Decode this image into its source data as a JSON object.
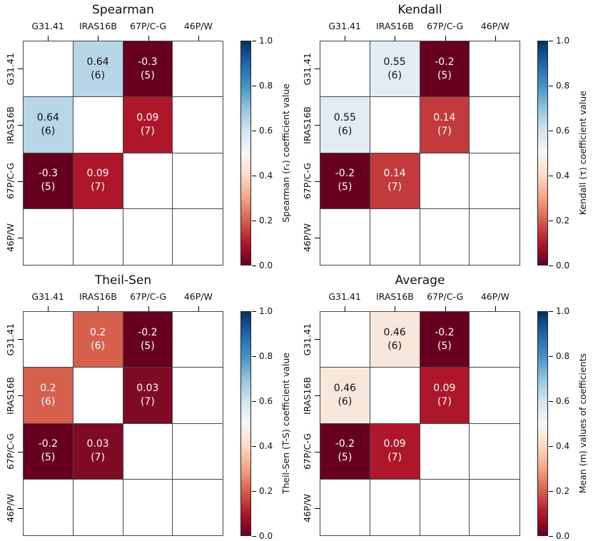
{
  "figure": {
    "row_labels": [
      "G31.41",
      "IRAS16B",
      "67P/C-G",
      "46P/W"
    ],
    "col_labels": [
      "G31.41",
      "IRAS16B",
      "67P/C-G",
      "46P/W"
    ],
    "colorbar_ticks": [
      "1.0",
      "0.8",
      "0.6",
      "0.4",
      "0.2",
      "0.0"
    ],
    "colorbar_range": [
      0.0,
      1.0
    ],
    "colormap": {
      "name": "RdBu",
      "stops": [
        "#67001f 0%",
        "#b2182b 10%",
        "#d6604d 20%",
        "#f4a582 30%",
        "#fddbc7 40%",
        "#f7f7f7 50%",
        "#d1e5f0 60%",
        "#92c5de 70%",
        "#4393c3 80%",
        "#2166ac 90%",
        "#053061 100%"
      ]
    },
    "text_color_dark": "#111111",
    "text_color_light": "#ffffff"
  },
  "chart_data": [
    {
      "type": "heatmap",
      "title": "Spearman",
      "colorbar_label": "Spearman (rₛ) coefficient value",
      "rows": [
        "G31.41",
        "IRAS16B",
        "67P/C-G",
        "46P/W"
      ],
      "columns": [
        "G31.41",
        "IRAS16B",
        "67P/C-G",
        "46P/W"
      ],
      "cells": [
        [
          null,
          {
            "value": 0.64,
            "n": 6,
            "label": "0.64",
            "count": "(6)",
            "bg": "#b7d6e8",
            "fg": "#111111"
          },
          {
            "value": -0.3,
            "n": 5,
            "label": "-0.3",
            "count": "(5)",
            "bg": "#67001f",
            "fg": "#ffffff"
          },
          null
        ],
        [
          {
            "value": 0.64,
            "n": 6,
            "label": "0.64",
            "count": "(6)",
            "bg": "#b7d6e8",
            "fg": "#111111"
          },
          null,
          {
            "value": 0.09,
            "n": 7,
            "label": "0.09",
            "count": "(7)",
            "bg": "#ae172b",
            "fg": "#ffffff"
          },
          null
        ],
        [
          {
            "value": -0.3,
            "n": 5,
            "label": "-0.3",
            "count": "(5)",
            "bg": "#67001f",
            "fg": "#ffffff"
          },
          {
            "value": 0.09,
            "n": 7,
            "label": "0.09",
            "count": "(7)",
            "bg": "#ae172b",
            "fg": "#ffffff"
          },
          null,
          null
        ],
        [
          null,
          null,
          null,
          null
        ]
      ]
    },
    {
      "type": "heatmap",
      "title": "Kendall",
      "colorbar_label": "Kendall (τ) coefficient value",
      "rows": [
        "G31.41",
        "IRAS16B",
        "67P/C-G",
        "46P/W"
      ],
      "columns": [
        "G31.41",
        "IRAS16B",
        "67P/C-G",
        "46P/W"
      ],
      "cells": [
        [
          null,
          {
            "value": 0.55,
            "n": 6,
            "label": "0.55",
            "count": "(6)",
            "bg": "#e2ecf3",
            "fg": "#111111"
          },
          {
            "value": -0.2,
            "n": 5,
            "label": "-0.2",
            "count": "(5)",
            "bg": "#67001f",
            "fg": "#ffffff"
          },
          null
        ],
        [
          {
            "value": 0.55,
            "n": 6,
            "label": "0.55",
            "count": "(6)",
            "bg": "#e2ecf3",
            "fg": "#111111"
          },
          null,
          {
            "value": 0.14,
            "n": 7,
            "label": "0.14",
            "count": "(7)",
            "bg": "#c23a3b",
            "fg": "#ffffff"
          },
          null
        ],
        [
          {
            "value": -0.2,
            "n": 5,
            "label": "-0.2",
            "count": "(5)",
            "bg": "#67001f",
            "fg": "#ffffff"
          },
          {
            "value": 0.14,
            "n": 7,
            "label": "0.14",
            "count": "(7)",
            "bg": "#c23a3b",
            "fg": "#ffffff"
          },
          null,
          null
        ],
        [
          null,
          null,
          null,
          null
        ]
      ]
    },
    {
      "type": "heatmap",
      "title": "Theil-Sen",
      "colorbar_label": "Theil-Sen (T-S) coefficient value",
      "rows": [
        "G31.41",
        "IRAS16B",
        "67P/C-G",
        "46P/W"
      ],
      "columns": [
        "G31.41",
        "IRAS16B",
        "67P/C-G",
        "46P/W"
      ],
      "cells": [
        [
          null,
          {
            "value": 0.2,
            "n": 6,
            "label": "0.2",
            "count": "(6)",
            "bg": "#d6604d",
            "fg": "#ffffff"
          },
          {
            "value": -0.2,
            "n": 5,
            "label": "-0.2",
            "count": "(5)",
            "bg": "#67001f",
            "fg": "#ffffff"
          },
          null
        ],
        [
          {
            "value": 0.2,
            "n": 6,
            "label": "0.2",
            "count": "(6)",
            "bg": "#d6604d",
            "fg": "#ffffff"
          },
          null,
          {
            "value": 0.03,
            "n": 7,
            "label": "0.03",
            "count": "(7)",
            "bg": "#7f0a24",
            "fg": "#ffffff"
          },
          null
        ],
        [
          {
            "value": -0.2,
            "n": 5,
            "label": "-0.2",
            "count": "(5)",
            "bg": "#67001f",
            "fg": "#ffffff"
          },
          {
            "value": 0.03,
            "n": 7,
            "label": "0.03",
            "count": "(7)",
            "bg": "#7f0a24",
            "fg": "#ffffff"
          },
          null,
          null
        ],
        [
          null,
          null,
          null,
          null
        ]
      ]
    },
    {
      "type": "heatmap",
      "title": "Average",
      "colorbar_label": "Mean (m) values of coefficients",
      "rows": [
        "G31.41",
        "IRAS16B",
        "67P/C-G",
        "46P/W"
      ],
      "columns": [
        "G31.41",
        "IRAS16B",
        "67P/C-G",
        "46P/W"
      ],
      "cells": [
        [
          null,
          {
            "value": 0.46,
            "n": 6,
            "label": "0.46",
            "count": "(6)",
            "bg": "#f8e8db",
            "fg": "#111111"
          },
          {
            "value": -0.2,
            "n": 5,
            "label": "-0.2",
            "count": "(5)",
            "bg": "#67001f",
            "fg": "#ffffff"
          },
          null
        ],
        [
          {
            "value": 0.46,
            "n": 6,
            "label": "0.46",
            "count": "(6)",
            "bg": "#f8e8db",
            "fg": "#111111"
          },
          null,
          {
            "value": 0.09,
            "n": 7,
            "label": "0.09",
            "count": "(7)",
            "bg": "#ae172b",
            "fg": "#ffffff"
          },
          null
        ],
        [
          {
            "value": -0.2,
            "n": 5,
            "label": "-0.2",
            "count": "(5)",
            "bg": "#67001f",
            "fg": "#ffffff"
          },
          {
            "value": 0.09,
            "n": 7,
            "label": "0.09",
            "count": "(7)",
            "bg": "#ae172b",
            "fg": "#ffffff"
          },
          null,
          null
        ],
        [
          null,
          null,
          null,
          null
        ]
      ]
    }
  ]
}
